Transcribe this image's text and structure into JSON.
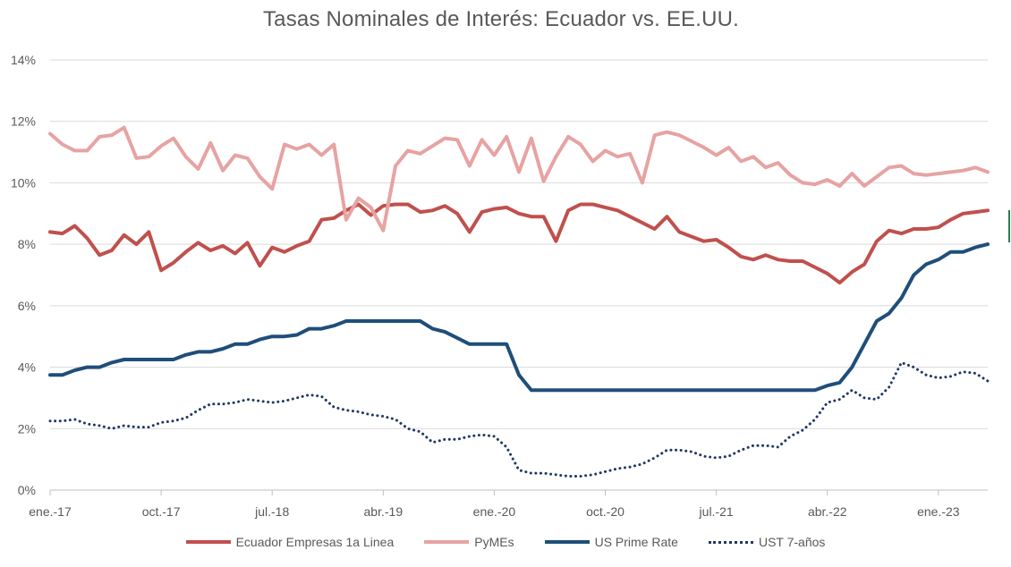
{
  "chart_data": {
    "type": "line",
    "title": "Tasas Nominales de Interés: Ecuador vs. EE.UU.",
    "xlabel": "",
    "ylabel": "",
    "ylim": [
      0,
      14
    ],
    "ytick_labels": [
      "0%",
      "2%",
      "4%",
      "6%",
      "8%",
      "10%",
      "12%",
      "14%"
    ],
    "yticks": [
      0,
      2,
      4,
      6,
      8,
      10,
      12,
      14
    ],
    "x_range": [
      "2017-01",
      "2023-05"
    ],
    "xtick_labels": [
      "ene.-17",
      "oct.-17",
      "jul.-18",
      "abr.-19",
      "ene.-20",
      "oct.-20",
      "jul.-21",
      "abr.-22",
      "ene.-23"
    ],
    "xticks": [
      "2017-01",
      "2017-10",
      "2018-07",
      "2019-04",
      "2020-01",
      "2020-10",
      "2021-07",
      "2022-04",
      "2023-01"
    ],
    "grid": "horizontal",
    "legend_position": "bottom",
    "series": [
      {
        "name": "Ecuador Empresas 1a Linea",
        "color": "#c0504d",
        "style": "solid",
        "x": [
          "2017-01",
          "2017-02",
          "2017-03",
          "2017-04",
          "2017-05",
          "2017-06",
          "2017-07",
          "2017-08",
          "2017-09",
          "2017-10",
          "2017-11",
          "2017-12",
          "2018-01",
          "2018-02",
          "2018-03",
          "2018-04",
          "2018-05",
          "2018-06",
          "2018-07",
          "2018-08",
          "2018-09",
          "2018-10",
          "2018-11",
          "2018-12",
          "2019-01",
          "2019-02",
          "2019-03",
          "2019-04",
          "2019-05",
          "2019-06",
          "2019-07",
          "2019-08",
          "2019-09",
          "2019-10",
          "2019-11",
          "2019-12",
          "2020-01",
          "2020-02",
          "2020-03",
          "2020-04",
          "2020-05",
          "2020-06",
          "2020-07",
          "2020-08",
          "2020-09",
          "2020-10",
          "2020-11",
          "2020-12",
          "2021-01",
          "2021-02",
          "2021-03",
          "2021-04",
          "2021-05",
          "2021-06",
          "2021-07",
          "2021-08",
          "2021-09",
          "2021-10",
          "2021-11",
          "2021-12",
          "2022-01",
          "2022-02",
          "2022-03",
          "2022-04",
          "2022-05",
          "2022-06",
          "2022-07",
          "2022-08",
          "2022-09",
          "2022-10",
          "2022-11",
          "2022-12",
          "2023-01",
          "2023-02",
          "2023-03",
          "2023-04",
          "2023-05"
        ],
        "values": [
          8.4,
          8.35,
          8.6,
          8.2,
          7.65,
          7.8,
          8.3,
          8.0,
          8.4,
          7.15,
          7.4,
          7.75,
          8.05,
          7.8,
          7.95,
          7.7,
          8.05,
          7.3,
          7.9,
          7.75,
          7.95,
          8.1,
          8.8,
          8.85,
          9.1,
          9.3,
          8.95,
          9.25,
          9.3,
          9.3,
          9.05,
          9.1,
          9.25,
          9.0,
          8.4,
          9.05,
          9.15,
          9.2,
          9.0,
          8.9,
          8.9,
          8.1,
          9.1,
          9.3,
          9.3,
          9.2,
          9.1,
          8.9,
          8.7,
          8.5,
          8.9,
          8.4,
          8.25,
          8.1,
          8.15,
          7.9,
          7.6,
          7.5,
          7.65,
          7.5,
          7.45,
          7.45,
          7.25,
          7.05,
          6.75,
          7.1,
          7.35,
          8.1,
          8.45,
          8.35,
          8.5,
          8.5,
          8.55,
          8.8,
          9.0,
          9.05,
          9.1
        ]
      },
      {
        "name": "PyMEs",
        "color": "#e6a3a2",
        "style": "solid",
        "x": [
          "2017-01",
          "2017-02",
          "2017-03",
          "2017-04",
          "2017-05",
          "2017-06",
          "2017-07",
          "2017-08",
          "2017-09",
          "2017-10",
          "2017-11",
          "2017-12",
          "2018-01",
          "2018-02",
          "2018-03",
          "2018-04",
          "2018-05",
          "2018-06",
          "2018-07",
          "2018-08",
          "2018-09",
          "2018-10",
          "2018-11",
          "2018-12",
          "2019-01",
          "2019-02",
          "2019-03",
          "2019-04",
          "2019-05",
          "2019-06",
          "2019-07",
          "2019-08",
          "2019-09",
          "2019-10",
          "2019-11",
          "2019-12",
          "2020-01",
          "2020-02",
          "2020-03",
          "2020-04",
          "2020-05",
          "2020-06",
          "2020-07",
          "2020-08",
          "2020-09",
          "2020-10",
          "2020-11",
          "2020-12",
          "2021-01",
          "2021-02",
          "2021-03",
          "2021-04",
          "2021-05",
          "2021-06",
          "2021-07",
          "2021-08",
          "2021-09",
          "2021-10",
          "2021-11",
          "2021-12",
          "2022-01",
          "2022-02",
          "2022-03",
          "2022-04",
          "2022-05",
          "2022-06",
          "2022-07",
          "2022-08",
          "2022-09",
          "2022-10",
          "2022-11",
          "2022-12",
          "2023-01",
          "2023-02",
          "2023-03",
          "2023-04",
          "2023-05"
        ],
        "values": [
          11.6,
          11.25,
          11.05,
          11.05,
          11.5,
          11.55,
          11.8,
          10.8,
          10.85,
          11.2,
          11.45,
          10.85,
          10.45,
          11.3,
          10.4,
          10.9,
          10.8,
          10.2,
          9.8,
          11.25,
          11.1,
          11.25,
          10.9,
          11.25,
          8.8,
          9.5,
          9.2,
          8.45,
          10.55,
          11.05,
          10.95,
          11.2,
          11.45,
          11.4,
          10.55,
          11.4,
          10.9,
          11.5,
          10.35,
          11.45,
          10.05,
          10.85,
          11.5,
          11.25,
          10.7,
          11.05,
          10.85,
          10.95,
          10.0,
          11.55,
          11.65,
          11.55,
          11.35,
          11.15,
          10.9,
          11.15,
          10.7,
          10.85,
          10.5,
          10.65,
          10.25,
          10.0,
          9.95,
          10.1,
          9.9,
          10.3,
          9.9,
          10.2,
          10.5,
          10.55,
          10.3,
          10.25,
          10.3,
          10.35,
          10.4,
          10.5,
          10.35
        ]
      },
      {
        "name": "US Prime Rate",
        "color": "#1f4e79",
        "style": "solid",
        "x": [
          "2017-01",
          "2017-02",
          "2017-03",
          "2017-04",
          "2017-05",
          "2017-06",
          "2017-07",
          "2017-08",
          "2017-09",
          "2017-10",
          "2017-11",
          "2017-12",
          "2018-01",
          "2018-02",
          "2018-03",
          "2018-04",
          "2018-05",
          "2018-06",
          "2018-07",
          "2018-08",
          "2018-09",
          "2018-10",
          "2018-11",
          "2018-12",
          "2019-01",
          "2019-02",
          "2019-03",
          "2019-04",
          "2019-05",
          "2019-06",
          "2019-07",
          "2019-08",
          "2019-09",
          "2019-10",
          "2019-11",
          "2019-12",
          "2020-01",
          "2020-02",
          "2020-03",
          "2020-04",
          "2020-05",
          "2020-06",
          "2020-07",
          "2020-08",
          "2020-09",
          "2020-10",
          "2020-11",
          "2020-12",
          "2021-01",
          "2021-02",
          "2021-03",
          "2021-04",
          "2021-05",
          "2021-06",
          "2021-07",
          "2021-08",
          "2021-09",
          "2021-10",
          "2021-11",
          "2021-12",
          "2022-01",
          "2022-02",
          "2022-03",
          "2022-04",
          "2022-05",
          "2022-06",
          "2022-07",
          "2022-08",
          "2022-09",
          "2022-10",
          "2022-11",
          "2022-12",
          "2023-01",
          "2023-02",
          "2023-03",
          "2023-04",
          "2023-05"
        ],
        "values": [
          3.75,
          3.75,
          3.9,
          4.0,
          4.0,
          4.15,
          4.25,
          4.25,
          4.25,
          4.25,
          4.25,
          4.4,
          4.5,
          4.5,
          4.6,
          4.75,
          4.75,
          4.9,
          5.0,
          5.0,
          5.05,
          5.25,
          5.25,
          5.35,
          5.5,
          5.5,
          5.5,
          5.5,
          5.5,
          5.5,
          5.5,
          5.25,
          5.15,
          4.95,
          4.75,
          4.75,
          4.75,
          4.75,
          3.75,
          3.25,
          3.25,
          3.25,
          3.25,
          3.25,
          3.25,
          3.25,
          3.25,
          3.25,
          3.25,
          3.25,
          3.25,
          3.25,
          3.25,
          3.25,
          3.25,
          3.25,
          3.25,
          3.25,
          3.25,
          3.25,
          3.25,
          3.25,
          3.25,
          3.4,
          3.5,
          4.0,
          4.75,
          5.5,
          5.75,
          6.25,
          7.0,
          7.35,
          7.5,
          7.75,
          7.75,
          7.9,
          8.0
        ]
      },
      {
        "name": "UST 7-años",
        "color": "#1f3864",
        "style": "dotted",
        "x": [
          "2017-01",
          "2017-02",
          "2017-03",
          "2017-04",
          "2017-05",
          "2017-06",
          "2017-07",
          "2017-08",
          "2017-09",
          "2017-10",
          "2017-11",
          "2017-12",
          "2018-01",
          "2018-02",
          "2018-03",
          "2018-04",
          "2018-05",
          "2018-06",
          "2018-07",
          "2018-08",
          "2018-09",
          "2018-10",
          "2018-11",
          "2018-12",
          "2019-01",
          "2019-02",
          "2019-03",
          "2019-04",
          "2019-05",
          "2019-06",
          "2019-07",
          "2019-08",
          "2019-09",
          "2019-10",
          "2019-11",
          "2019-12",
          "2020-01",
          "2020-02",
          "2020-03",
          "2020-04",
          "2020-05",
          "2020-06",
          "2020-07",
          "2020-08",
          "2020-09",
          "2020-10",
          "2020-11",
          "2020-12",
          "2021-01",
          "2021-02",
          "2021-03",
          "2021-04",
          "2021-05",
          "2021-06",
          "2021-07",
          "2021-08",
          "2021-09",
          "2021-10",
          "2021-11",
          "2021-12",
          "2022-01",
          "2022-02",
          "2022-03",
          "2022-04",
          "2022-05",
          "2022-06",
          "2022-07",
          "2022-08",
          "2022-09",
          "2022-10",
          "2022-11",
          "2022-12",
          "2023-01",
          "2023-02",
          "2023-03",
          "2023-04",
          "2023-05"
        ],
        "values": [
          2.25,
          2.25,
          2.3,
          2.15,
          2.1,
          2.0,
          2.1,
          2.05,
          2.05,
          2.2,
          2.25,
          2.35,
          2.6,
          2.8,
          2.8,
          2.85,
          2.95,
          2.9,
          2.85,
          2.9,
          3.0,
          3.1,
          3.05,
          2.7,
          2.6,
          2.55,
          2.45,
          2.4,
          2.3,
          2.0,
          1.9,
          1.55,
          1.65,
          1.65,
          1.75,
          1.8,
          1.75,
          1.4,
          0.65,
          0.55,
          0.55,
          0.5,
          0.45,
          0.45,
          0.5,
          0.6,
          0.7,
          0.75,
          0.85,
          1.05,
          1.3,
          1.3,
          1.25,
          1.1,
          1.05,
          1.1,
          1.3,
          1.45,
          1.45,
          1.4,
          1.75,
          1.95,
          2.3,
          2.85,
          2.95,
          3.25,
          3.0,
          2.95,
          3.35,
          4.15,
          4.0,
          3.75,
          3.65,
          3.7,
          3.85,
          3.8,
          3.55
        ]
      }
    ]
  }
}
